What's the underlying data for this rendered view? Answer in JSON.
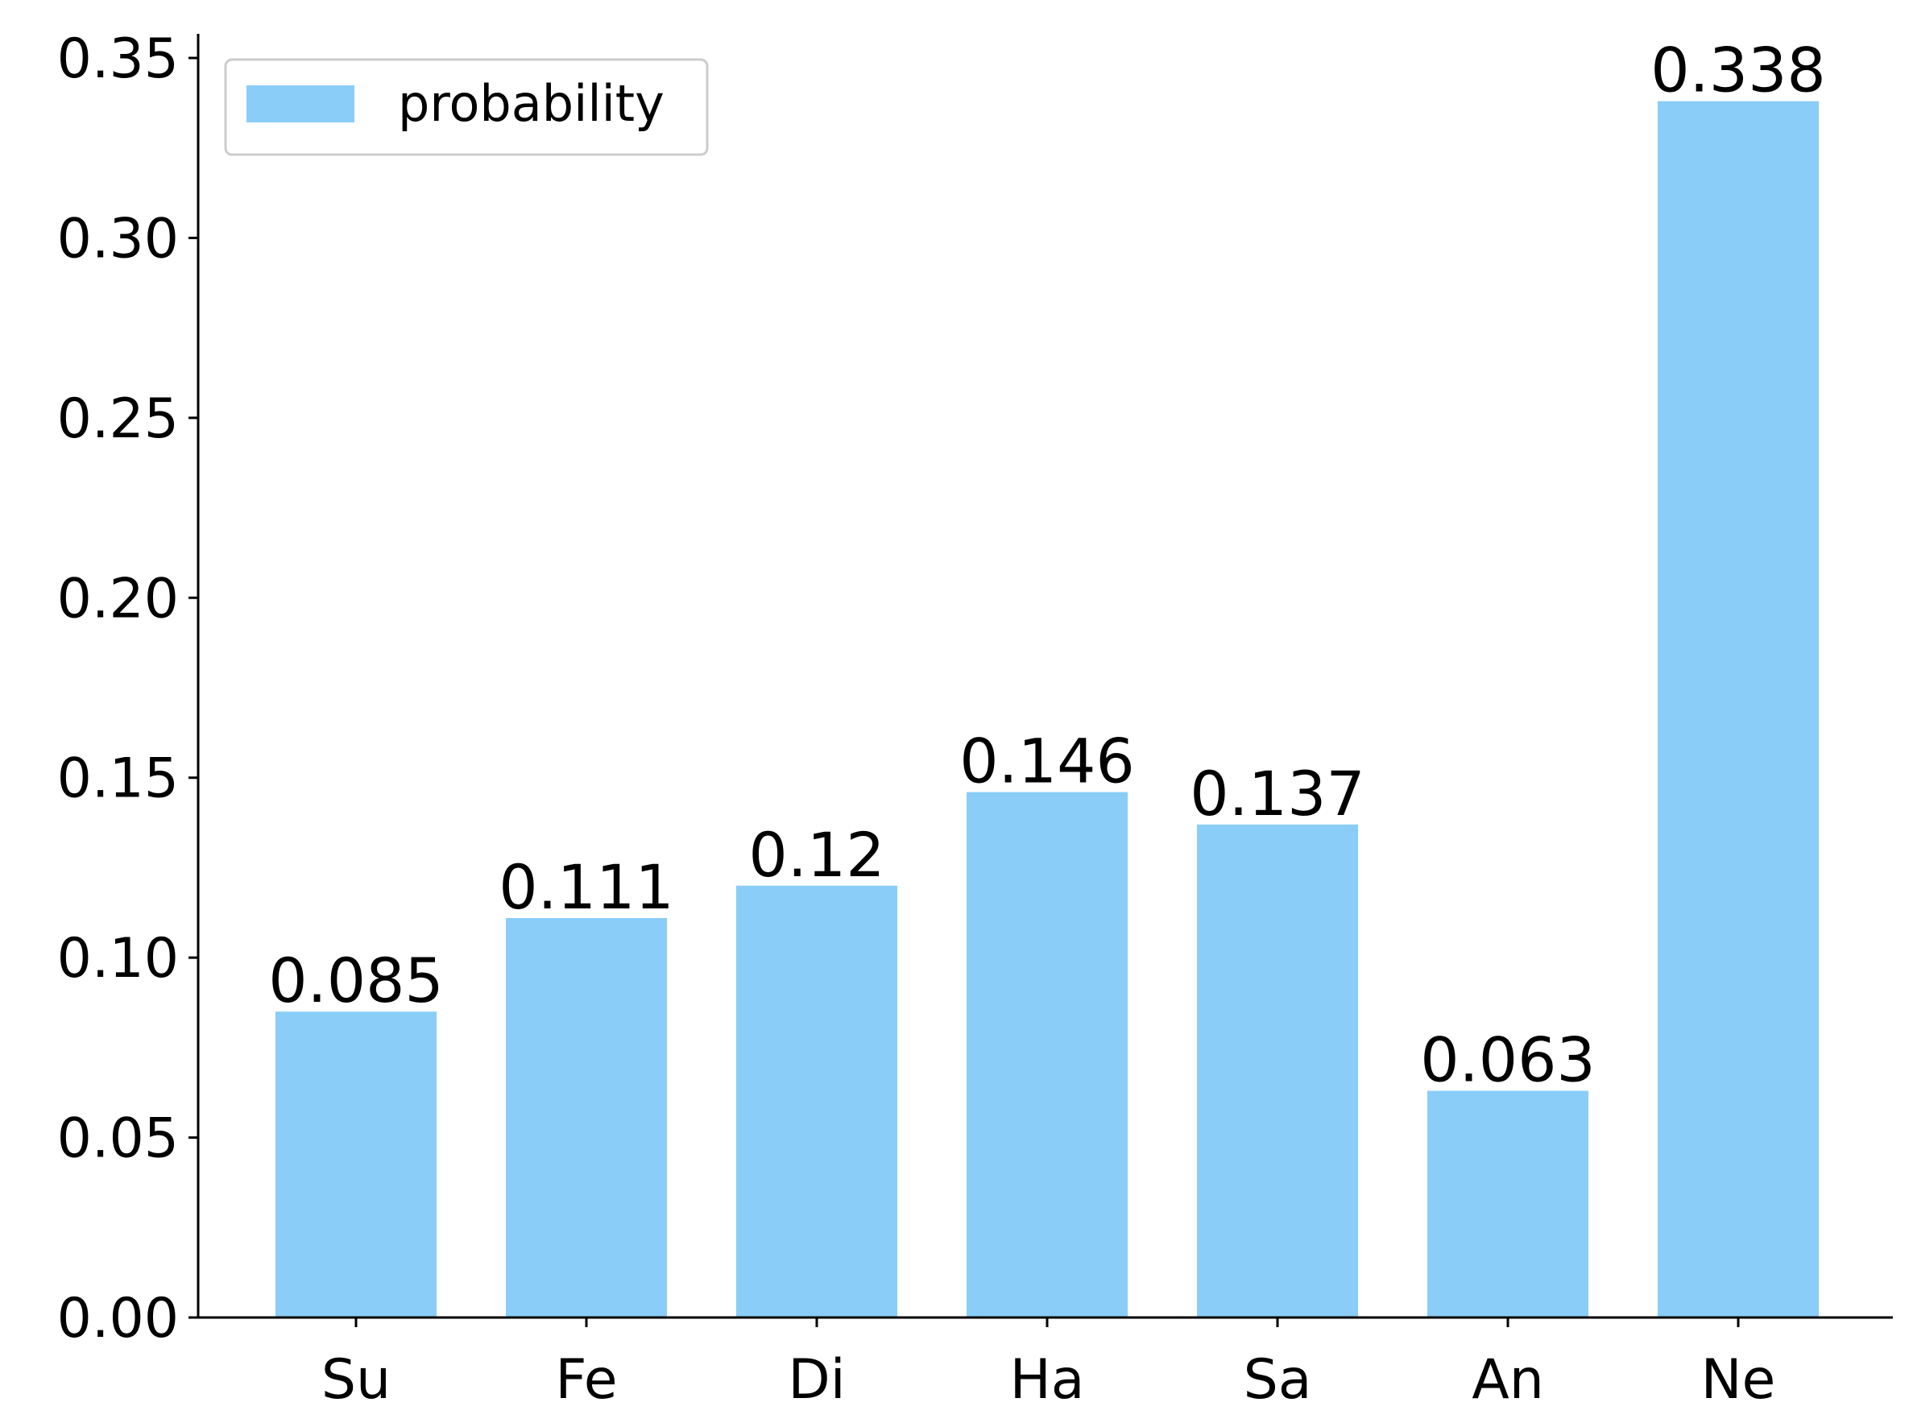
{
  "chart_data": {
    "type": "bar",
    "categories": [
      "Su",
      "Fe",
      "Di",
      "Ha",
      "Sa",
      "An",
      "Ne"
    ],
    "series": [
      {
        "name": "probability",
        "values": [
          0.085,
          0.111,
          0.12,
          0.146,
          0.137,
          0.063,
          0.338
        ]
      }
    ],
    "data_labels": [
      "0.085",
      "0.111",
      "0.12",
      "0.146",
      "0.137",
      "0.063",
      "0.338"
    ],
    "y_ticks": [
      0.0,
      0.05,
      0.1,
      0.15,
      0.2,
      0.25,
      0.3,
      0.35
    ],
    "y_tick_labels": [
      "0.00",
      "0.05",
      "0.10",
      "0.15",
      "0.20",
      "0.25",
      "0.30",
      "0.35"
    ],
    "ylim": [
      0,
      0.355
    ],
    "title": "",
    "xlabel": "",
    "ylabel": "",
    "grid": false,
    "legend": {
      "placement": "top-left",
      "entries": [
        "probability"
      ]
    },
    "colors": {
      "bar": "#89cdf8",
      "axis": "#000000",
      "legend_border": "#cccccc"
    }
  }
}
